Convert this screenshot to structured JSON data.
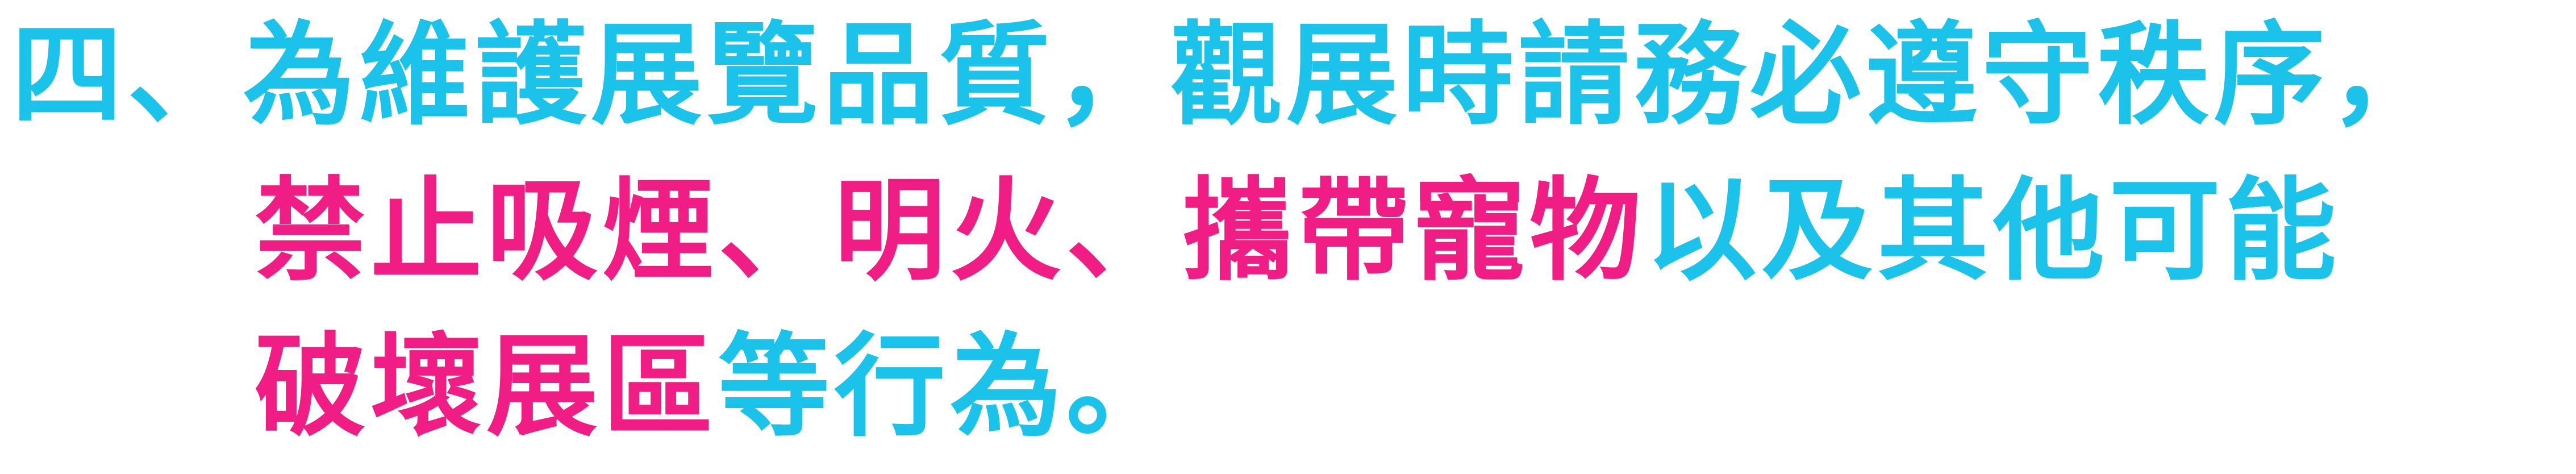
{
  "colors": {
    "cyan": "#1BC3EA",
    "magenta": "#F01E84"
  },
  "notice": {
    "lines": [
      {
        "segments": [
          {
            "text": "四、為維護展覽品質，觀展時請務必遵守秩序，",
            "color": "cyan"
          }
        ]
      },
      {
        "segments": [
          {
            "text": "禁止吸煙、明火、攜帶寵物",
            "color": "magenta"
          },
          {
            "text": "以及其他可能",
            "color": "cyan"
          }
        ]
      },
      {
        "segments": [
          {
            "text": "破壞展區",
            "color": "magenta"
          },
          {
            "text": "等行為。",
            "color": "cyan"
          }
        ]
      }
    ]
  }
}
